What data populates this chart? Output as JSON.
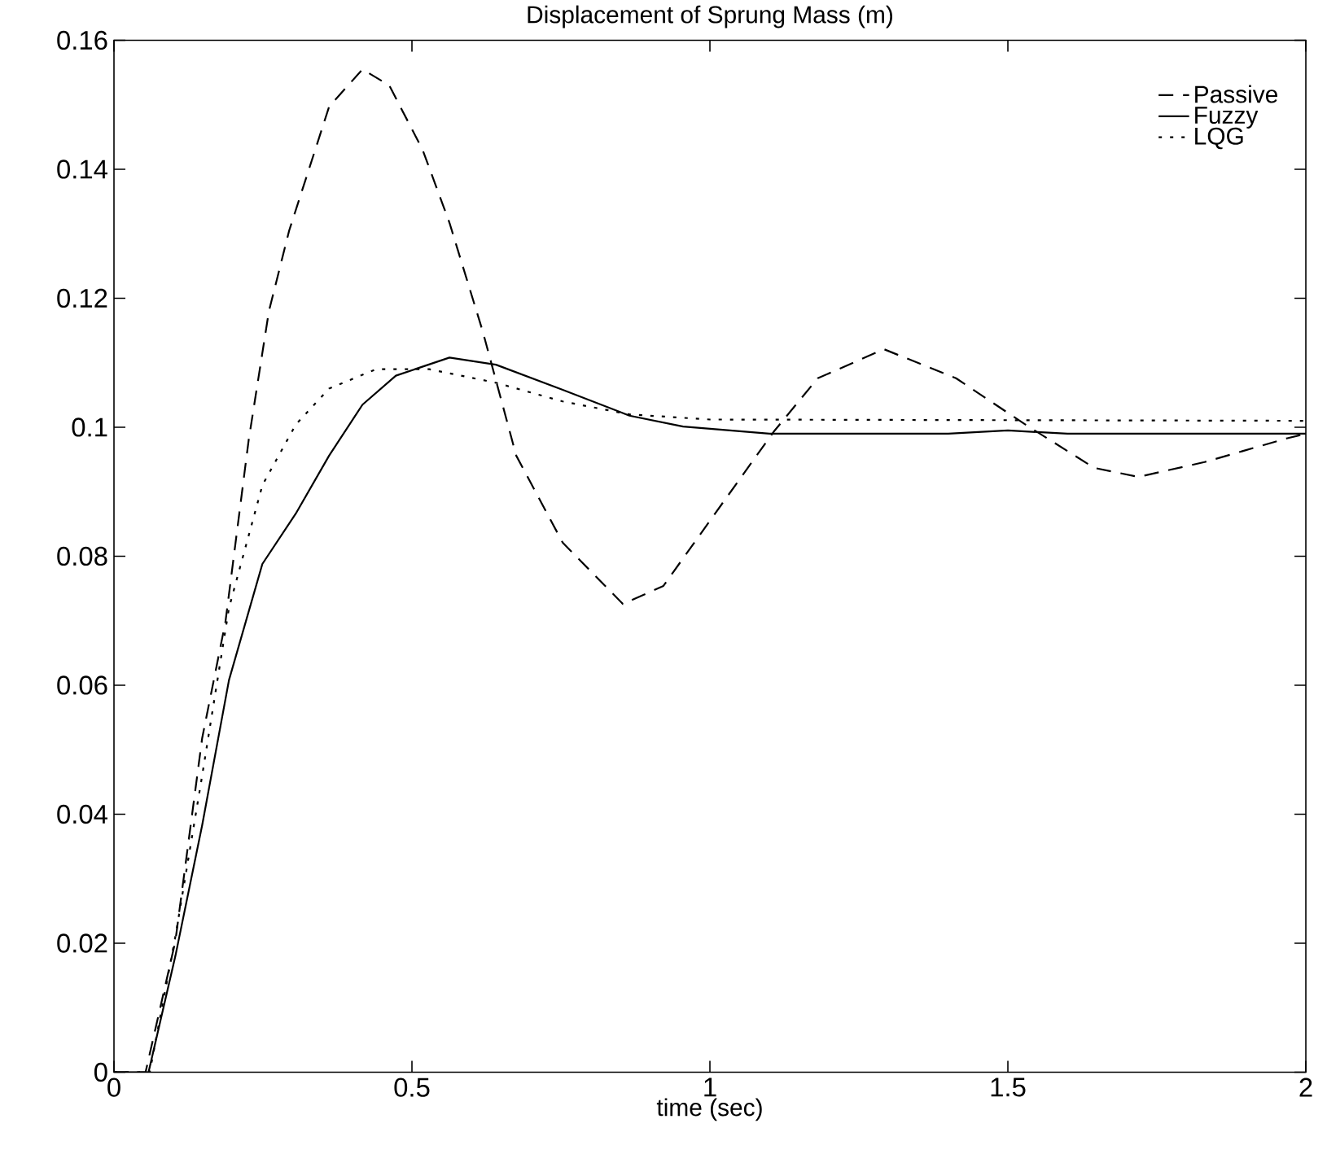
{
  "chart_data": {
    "type": "line",
    "title": "Displacement of Sprung Mass (m)",
    "xlabel": "time (sec)",
    "xlim": [
      0,
      2
    ],
    "ylim": [
      0,
      0.16
    ],
    "xticks": [
      0,
      0.5,
      1,
      1.5,
      2
    ],
    "yticks": [
      0,
      0.02,
      0.04,
      0.06,
      0.08,
      0.1,
      0.12,
      0.14,
      0.16
    ],
    "legend": "top right",
    "grid": false,
    "series": [
      {
        "name": "Passive",
        "color": "#000000",
        "line_style": "dashed",
        "x": [
          0,
          0.053,
          0.103,
          0.148,
          0.187,
          0.226,
          0.26,
          0.294,
          0.361,
          0.417,
          0.462,
          0.518,
          0.563,
          0.619,
          0.675,
          0.753,
          0.854,
          0.922,
          1.0,
          1.107,
          1.181,
          1.292,
          1.413,
          1.533,
          1.645,
          1.719,
          1.83,
          1.969,
          2.0
        ],
        "values": [
          0,
          0,
          0.0203,
          0.0518,
          0.0698,
          0.098,
          0.118,
          0.1305,
          0.1497,
          0.1555,
          0.153,
          0.143,
          0.1317,
          0.1148,
          0.0956,
          0.0821,
          0.0726,
          0.0754,
          0.0855,
          0.0993,
          0.1076,
          0.1121,
          0.1076,
          0.1002,
          0.0937,
          0.0923,
          0.0946,
          0.0983,
          0.099
        ]
      },
      {
        "name": "Fuzzy",
        "color": "#000000",
        "line_style": "solid",
        "x": [
          0,
          0.058,
          0.103,
          0.148,
          0.193,
          0.249,
          0.305,
          0.361,
          0.417,
          0.473,
          0.563,
          0.641,
          0.753,
          0.865,
          0.955,
          1.1,
          1.4,
          1.5,
          1.6,
          2.0
        ],
        "values": [
          0,
          0,
          0.018,
          0.0383,
          0.0608,
          0.0788,
          0.0866,
          0.0956,
          0.1035,
          0.108,
          0.1108,
          0.1097,
          0.1058,
          0.1018,
          0.1001,
          0.099,
          0.099,
          0.0995,
          0.099,
          0.099
        ]
      },
      {
        "name": "LQG",
        "color": "#000000",
        "line_style": "dotted",
        "x": [
          0,
          0.06,
          0.103,
          0.148,
          0.193,
          0.249,
          0.305,
          0.361,
          0.44,
          0.529,
          0.641,
          0.753,
          0.865,
          1.0,
          1.5,
          2.0
        ],
        "values": [
          0,
          0,
          0.021,
          0.046,
          0.072,
          0.091,
          0.1004,
          0.106,
          0.109,
          0.109,
          0.1069,
          0.104,
          0.102,
          0.1012,
          0.1011,
          0.101
        ]
      }
    ]
  }
}
